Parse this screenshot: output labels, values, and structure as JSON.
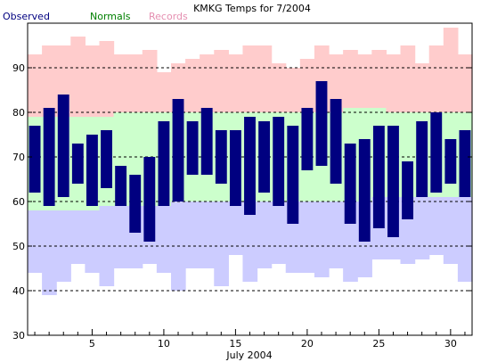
{
  "chart_data": {
    "type": "bar",
    "title": "KMKG Temps for 7/2004",
    "xlabel": "July 2004",
    "ylabel": "",
    "ylim": [
      30,
      100
    ],
    "xlim": [
      0.5,
      31.5
    ],
    "grid": true,
    "legend_position": "top-left",
    "legend": [
      {
        "name": "Observed",
        "color": "#000080"
      },
      {
        "name": "Normals",
        "color": "#008000"
      },
      {
        "name": "Records",
        "color": "#e58fb1"
      }
    ],
    "x_ticks": [
      5,
      10,
      15,
      20,
      25,
      30
    ],
    "y_ticks": [
      30,
      40,
      50,
      60,
      70,
      80,
      90
    ],
    "colors": {
      "observed": "#000080",
      "normals_band": "#ccffcc",
      "record_high_band": "#ffcccc",
      "record_low_band": "#ccccff",
      "grid": "#000000"
    },
    "days": [
      1,
      2,
      3,
      4,
      5,
      6,
      7,
      8,
      9,
      10,
      11,
      12,
      13,
      14,
      15,
      16,
      17,
      18,
      19,
      20,
      21,
      22,
      23,
      24,
      25,
      26,
      27,
      28,
      29,
      30,
      31
    ],
    "observed_high": [
      77,
      81,
      84,
      73,
      75,
      76,
      68,
      66,
      70,
      78,
      83,
      78,
      81,
      76,
      76,
      79,
      78,
      79,
      77,
      81,
      87,
      83,
      73,
      74,
      77,
      77,
      69,
      78,
      80,
      74,
      76
    ],
    "observed_low": [
      62,
      59,
      61,
      64,
      59,
      63,
      59,
      53,
      51,
      59,
      60,
      66,
      66,
      64,
      59,
      57,
      62,
      59,
      55,
      67,
      68,
      64,
      55,
      51,
      54,
      52,
      56,
      61,
      62,
      64,
      61
    ],
    "normal_high": [
      79,
      79,
      79,
      79,
      79,
      79,
      80,
      80,
      80,
      80,
      80,
      80,
      80,
      80,
      80,
      80,
      80,
      80,
      80,
      80,
      80,
      80,
      81,
      81,
      81,
      80,
      80,
      80,
      80,
      80,
      80
    ],
    "normal_low": [
      58,
      58,
      58,
      58,
      58,
      59,
      59,
      59,
      59,
      59,
      60,
      60,
      60,
      60,
      60,
      60,
      60,
      60,
      60,
      60,
      60,
      60,
      60,
      60,
      61,
      61,
      61,
      61,
      61,
      61,
      61
    ],
    "record_high": [
      93,
      95,
      95,
      97,
      95,
      96,
      93,
      93,
      94,
      89,
      91,
      92,
      93,
      94,
      93,
      95,
      95,
      91,
      90,
      92,
      95,
      93,
      94,
      93,
      94,
      93,
      95,
      91,
      95,
      99,
      93
    ],
    "record_low": [
      44,
      39,
      42,
      46,
      44,
      41,
      45,
      45,
      46,
      44,
      40,
      45,
      45,
      41,
      48,
      42,
      45,
      46,
      44,
      44,
      43,
      45,
      42,
      43,
      47,
      47,
      46,
      47,
      48,
      46,
      42
    ]
  }
}
